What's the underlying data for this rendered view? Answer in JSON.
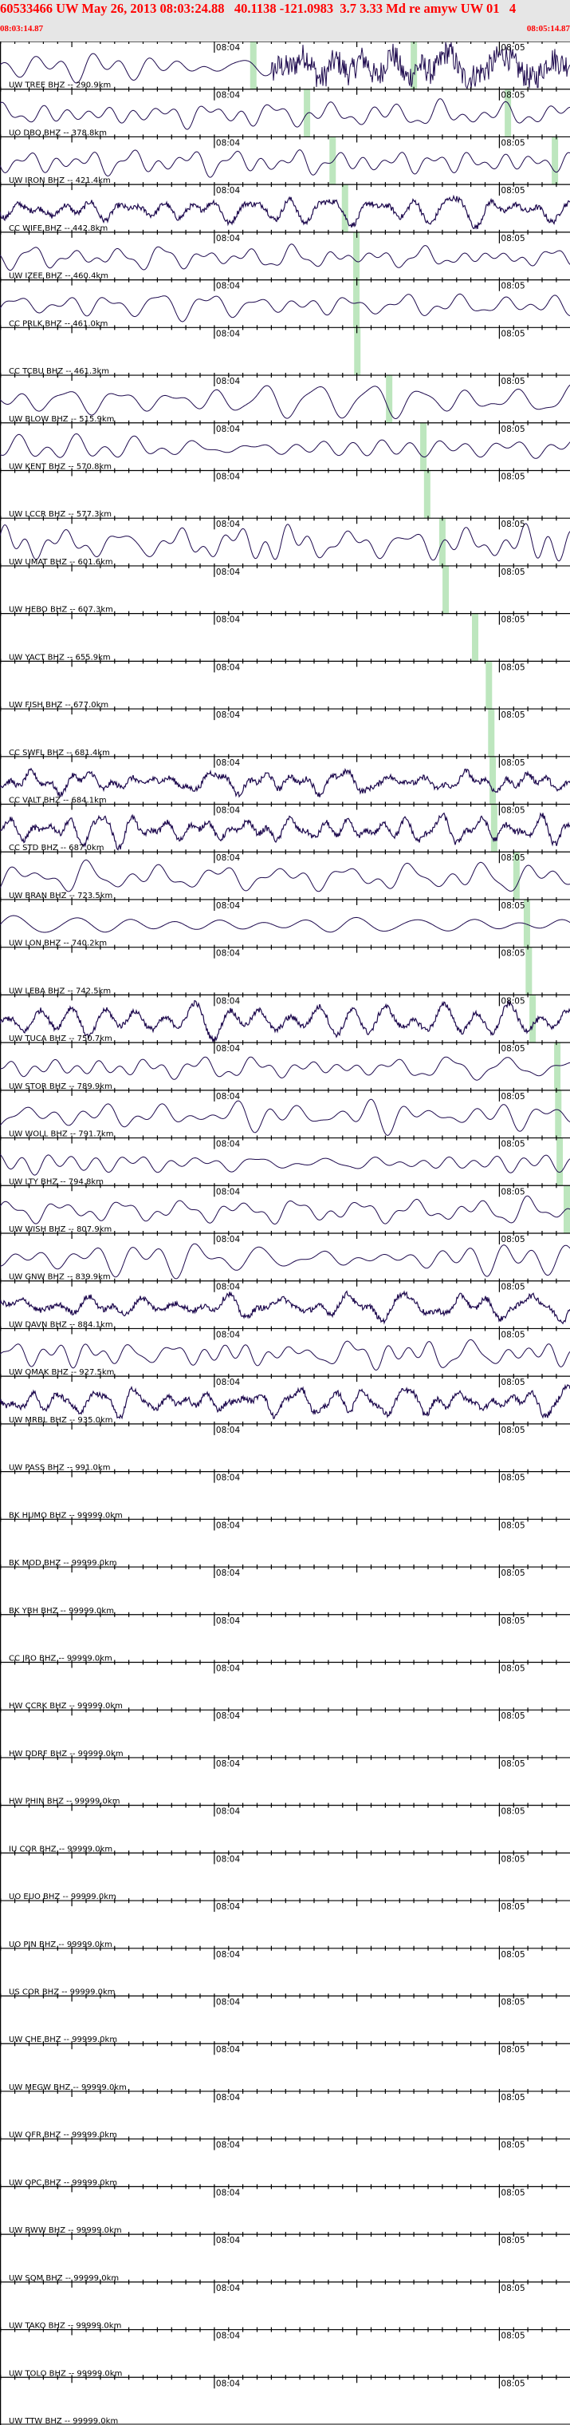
{
  "header": {
    "title": "60533466 UW May 26, 2013 08:03:24.88   40.1138 -121.0983  3.7 3.33 Md re amyw UW 01   4",
    "start_time": "08:03:14.87",
    "end_time": "08:05:14.87"
  },
  "colors": {
    "trace": "#1e0a4e",
    "pick": "#bde6be",
    "header_text": "#ff0000",
    "header_bg": "#e6e6e6"
  },
  "chart_data": {
    "type": "line",
    "x_range": [
      "08:03:14.87",
      "08:05:14.87"
    ],
    "tick_labels": [
      "08:04",
      "08:05"
    ],
    "traces": [
      {
        "label": "UW TREE BHZ -- 290.9km",
        "waveform": "burst",
        "picks": [
          "08:04:08.2",
          "08:04:42.0"
        ]
      },
      {
        "label": "UO DBQ BHZ -- 378.8km",
        "waveform": "smooth",
        "picks": [
          "08:04:19.5",
          "08:05:01.8"
        ]
      },
      {
        "label": "UW IRON BHZ -- 421.4km",
        "waveform": "smooth",
        "picks": [
          "08:04:24.9",
          "08:05:11.7"
        ]
      },
      {
        "label": "CC WIFE BHZ -- 442.8km",
        "waveform": "noisy",
        "picks": [
          "08:04:27.5"
        ]
      },
      {
        "label": "UW IZEE BHZ -- 460.4km",
        "waveform": "smooth",
        "picks": [
          "08:04:29.9"
        ]
      },
      {
        "label": "CC PRLK BHZ -- 461.0km",
        "waveform": "smooth",
        "picks": [
          "08:04:29.9"
        ]
      },
      {
        "label": "CC TCBU BHZ -- 461.3km",
        "waveform": "none",
        "picks": [
          "08:04:30.1"
        ]
      },
      {
        "label": "UW BLOW BHZ -- 515.9km",
        "waveform": "smooth",
        "picks": [
          "08:04:36.8"
        ]
      },
      {
        "label": "UW KENT BHZ -- 570.8km",
        "waveform": "smooth",
        "picks": [
          "08:04:44.0"
        ]
      },
      {
        "label": "UW LCCR BHZ -- 577.3km",
        "waveform": "none",
        "picks": [
          "08:04:44.8"
        ]
      },
      {
        "label": "UW UMAT BHZ -- 601.6km",
        "waveform": "smooth",
        "picks": [
          "08:04:48.0"
        ]
      },
      {
        "label": "UW HEBO BHZ -- 607.3km",
        "waveform": "none",
        "picks": [
          "08:04:48.7"
        ]
      },
      {
        "label": "UW YACT BHZ -- 655.9km",
        "waveform": "none",
        "picks": [
          "08:04:54.9"
        ]
      },
      {
        "label": "UW FISH BHZ -- 677.0km",
        "waveform": "none",
        "picks": [
          "08:04:57.8"
        ]
      },
      {
        "label": "CC SWFL BHZ -- 681.4km",
        "waveform": "none",
        "picks": [
          "08:04:58.3"
        ]
      },
      {
        "label": "CC VALT BHZ -- 684.1km",
        "waveform": "noisy",
        "picks": [
          "08:04:58.6"
        ]
      },
      {
        "label": "CC STD BHZ -- 687.0km",
        "waveform": "noisy",
        "picks": [
          "08:04:58.9"
        ]
      },
      {
        "label": "UW BRAN BHZ -- 723.5km",
        "waveform": "smooth",
        "picks": [
          "08:05:03.6"
        ]
      },
      {
        "label": "UW LON BHZ -- 740.2km",
        "waveform": "smooth",
        "picks": [
          "08:05:05.8"
        ]
      },
      {
        "label": "UW LEBA BHZ -- 742.5km",
        "waveform": "none",
        "picks": [
          "08:05:06.2"
        ]
      },
      {
        "label": "UW TUCA BHZ -- 750.7km",
        "waveform": "noisy",
        "picks": [
          "08:05:07.0"
        ]
      },
      {
        "label": "UW STOR BHZ -- 789.9km",
        "waveform": "smooth",
        "picks": [
          "08:05:12.2"
        ]
      },
      {
        "label": "UW WOLL BHZ -- 791.7km",
        "waveform": "smooth",
        "picks": [
          "08:05:12.4"
        ]
      },
      {
        "label": "UW LTY BHZ -- 794.8km",
        "waveform": "smooth",
        "picks": [
          "08:05:12.7"
        ]
      },
      {
        "label": "UW WISH BHZ -- 807.9km",
        "waveform": "smooth",
        "picks": [
          "08:05:14.2"
        ]
      },
      {
        "label": "UW GNW BHZ -- 839.9km",
        "waveform": "smooth",
        "picks": []
      },
      {
        "label": "UW DAVN BHZ -- 884.1km",
        "waveform": "noisy",
        "picks": []
      },
      {
        "label": "UW OMAK BHZ -- 927.5km",
        "waveform": "smooth",
        "picks": []
      },
      {
        "label": "UW MRBL BHZ -- 935.0km",
        "waveform": "noisy",
        "picks": []
      },
      {
        "label": "UW PASS BHZ -- 991.0km",
        "waveform": "none",
        "picks": []
      },
      {
        "label": "BK HUMO BHZ -- 99999.0km",
        "waveform": "none",
        "picks": []
      },
      {
        "label": "BK MOD BHZ -- 99999.0km",
        "waveform": "none",
        "picks": []
      },
      {
        "label": "BK YBH BHZ -- 99999.0km",
        "waveform": "none",
        "picks": []
      },
      {
        "label": "CC JRO BHZ -- 99999.0km",
        "waveform": "none",
        "picks": []
      },
      {
        "label": "HW CCRK BHZ -- 99999.0km",
        "waveform": "none",
        "picks": []
      },
      {
        "label": "HW DDRF BHZ -- 99999.0km",
        "waveform": "none",
        "picks": []
      },
      {
        "label": "HW PHIN BHZ -- 99999.0km",
        "waveform": "none",
        "picks": []
      },
      {
        "label": "IU COR BHZ -- 99999.0km",
        "waveform": "none",
        "picks": []
      },
      {
        "label": "UO EUO BHZ -- 99999.0km",
        "waveform": "none",
        "picks": []
      },
      {
        "label": "UO PIN BHZ -- 99999.0km",
        "waveform": "none",
        "picks": []
      },
      {
        "label": "US COR BHZ -- 99999.0km",
        "waveform": "none",
        "picks": []
      },
      {
        "label": "UW CHE BHZ -- 99999.0km",
        "waveform": "none",
        "picks": []
      },
      {
        "label": "UW MEGW BHZ -- 99999.0km",
        "waveform": "none",
        "picks": []
      },
      {
        "label": "UW OFR BHZ -- 99999.0km",
        "waveform": "none",
        "picks": []
      },
      {
        "label": "UW OPC BHZ -- 99999.0km",
        "waveform": "none",
        "picks": []
      },
      {
        "label": "UW RWW BHZ -- 99999.0km",
        "waveform": "none",
        "picks": []
      },
      {
        "label": "UW SQM BHZ -- 99999.0km",
        "waveform": "none",
        "picks": []
      },
      {
        "label": "UW TAKO BHZ -- 99999.0km",
        "waveform": "none",
        "picks": []
      },
      {
        "label": "UW TOLO BHZ -- 99999.0km",
        "waveform": "none",
        "picks": []
      },
      {
        "label": "UW TTW BHZ -- 99999.0km",
        "waveform": "none",
        "picks": []
      }
    ]
  }
}
